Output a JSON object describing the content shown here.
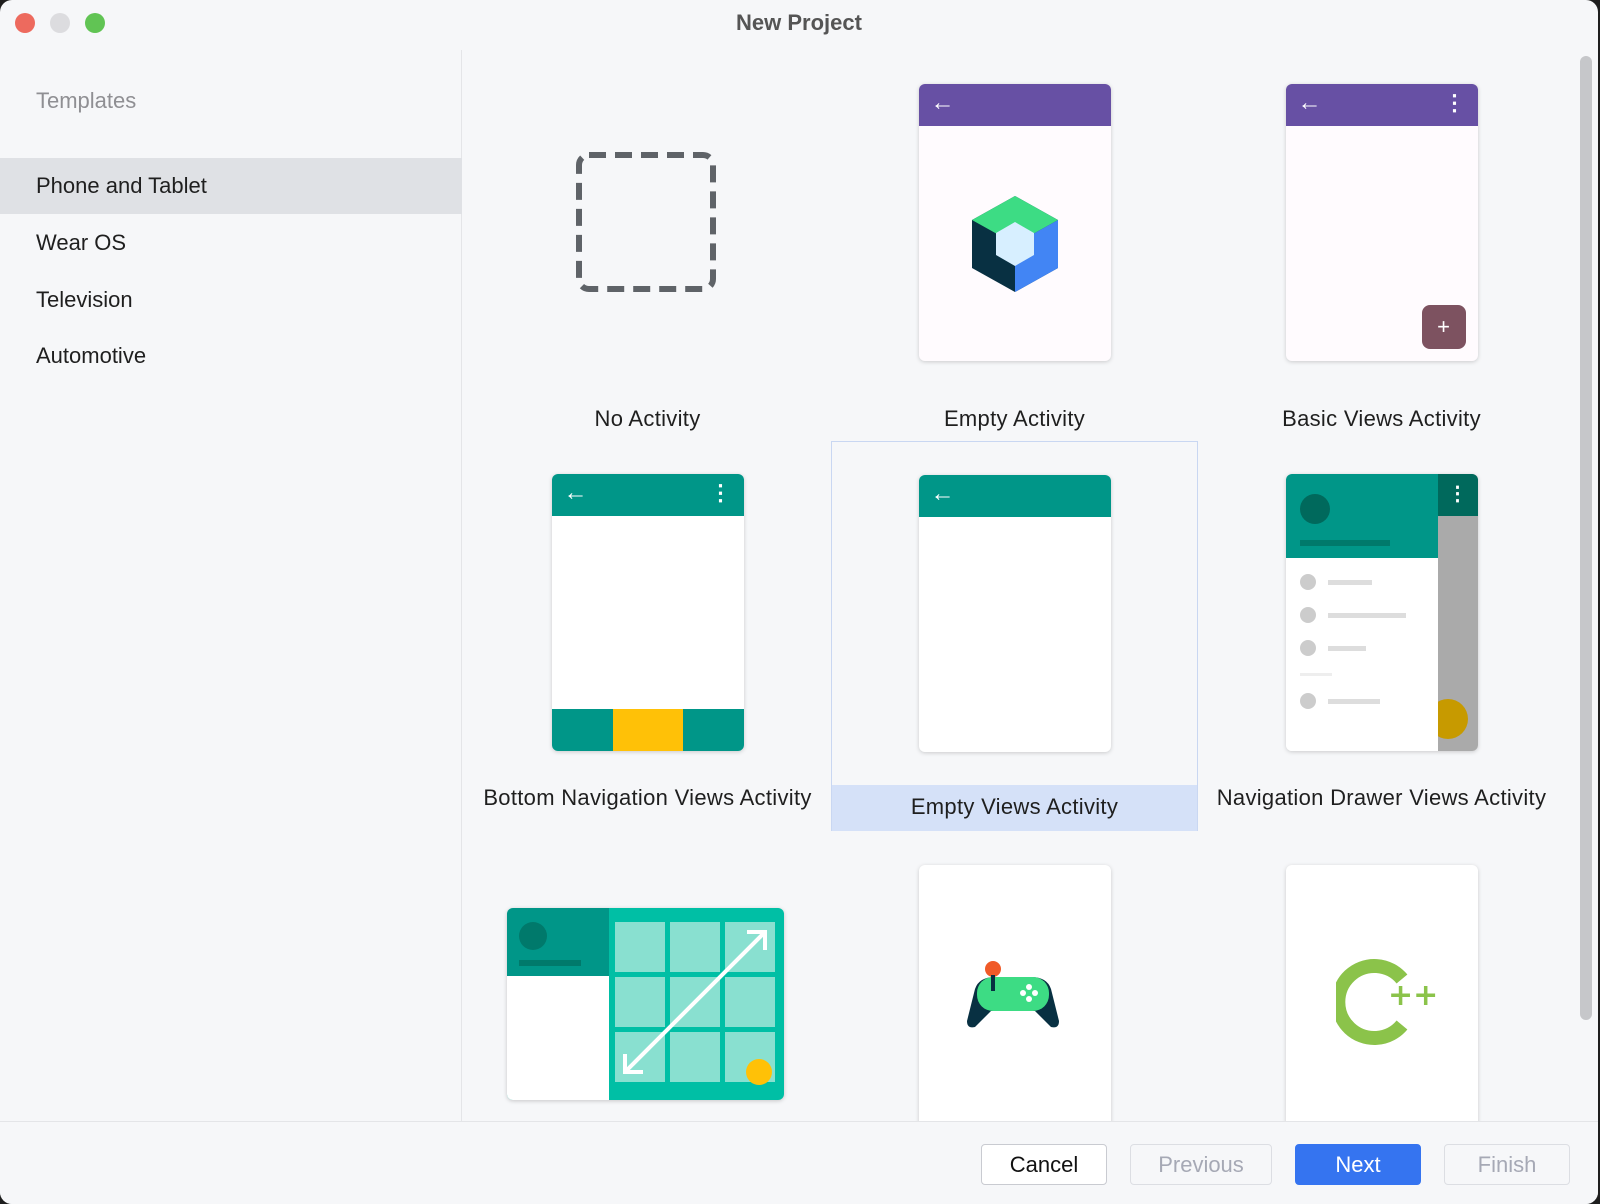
{
  "window": {
    "title": "New Project"
  },
  "sidebar": {
    "heading": "Templates",
    "items": [
      {
        "label": "Phone and Tablet",
        "selected": true
      },
      {
        "label": "Wear OS"
      },
      {
        "label": "Television"
      },
      {
        "label": "Automotive"
      }
    ]
  },
  "templates": [
    {
      "label": "No Activity"
    },
    {
      "label": "Empty Activity"
    },
    {
      "label": "Basic Views Activity"
    },
    {
      "label": "Bottom Navigation Views Activity"
    },
    {
      "label": "Empty Views Activity",
      "selected": true
    },
    {
      "label": "Navigation Drawer Views Activity"
    },
    {
      "label": ""
    },
    {
      "label": ""
    },
    {
      "label": ""
    }
  ],
  "cpp_text": "++",
  "footer": {
    "cancel": "Cancel",
    "previous": "Previous",
    "next": "Next",
    "finish": "Finish"
  },
  "colors": {
    "accent": "#3574f0",
    "purple": "#6750a4",
    "teal": "#009688",
    "selection": "#d5e1f8"
  }
}
